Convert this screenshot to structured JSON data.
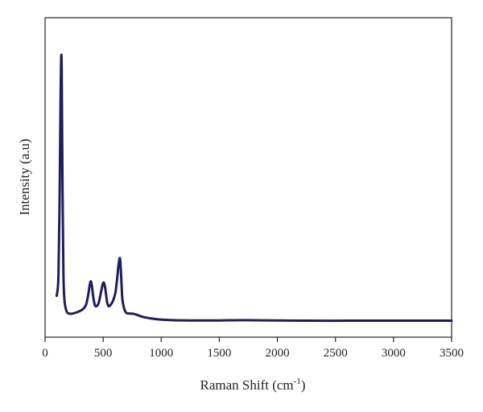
{
  "chart_data": {
    "type": "line",
    "xlabel": "Raman Shift (cm",
    "xlabel_sup": "-1",
    "xlabel_suffix": ")",
    "ylabel": "Intensity (a.u)",
    "xlim": [
      0,
      3500
    ],
    "ylim": [
      0,
      100
    ],
    "xticks": [
      "0",
      "500",
      "1000",
      "1500",
      "2000",
      "2500",
      "3000",
      "3500"
    ],
    "grid": false,
    "line_color": "#1e1e5a",
    "series": [
      {
        "x": [
          100,
          115,
          125,
          133,
          138,
          143,
          150,
          158,
          166,
          175,
          190,
          220,
          270,
          320,
          350,
          370,
          385,
          395,
          405,
          415,
          430,
          450,
          465,
          480,
          495,
          505,
          515,
          525,
          535,
          548,
          565,
          585,
          605,
          620,
          632,
          645,
          655,
          665,
          680,
          700,
          730,
          760,
          800,
          850,
          950,
          1100,
          1300,
          1500,
          1700,
          2000,
          2300,
          2600,
          2900,
          3200,
          3500
        ],
        "y": [
          10,
          17,
          45,
          80,
          95,
          92,
          50,
          18,
          9,
          6,
          4,
          3.5,
          4,
          5,
          6.5,
          10,
          14,
          15.2,
          13,
          9.5,
          6.5,
          6.5,
          8,
          11,
          14,
          14.8,
          13.5,
          10.5,
          7.5,
          6.2,
          6.8,
          8.2,
          11,
          16,
          21,
          23.5,
          17,
          9,
          5.5,
          3.8,
          3.6,
          3.5,
          3,
          2.3,
          1.6,
          1.2,
          1.1,
          1.1,
          1.2,
          1.1,
          1,
          1,
          1,
          1,
          1
        ]
      }
    ]
  }
}
